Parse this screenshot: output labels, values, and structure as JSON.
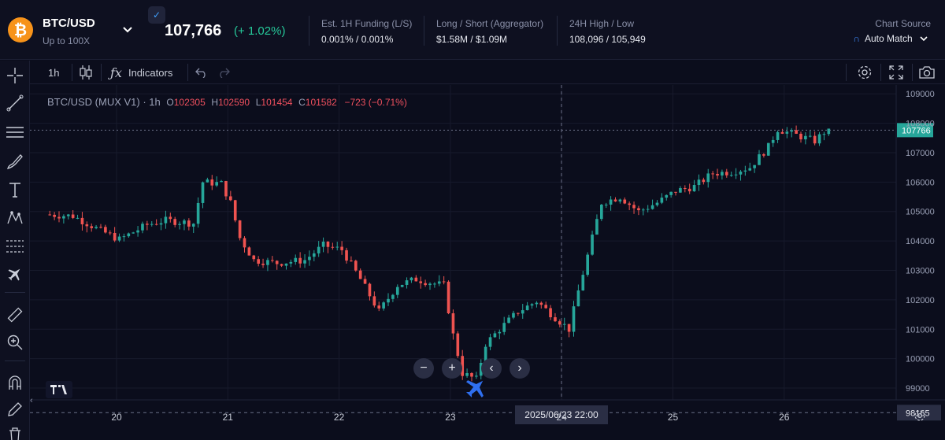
{
  "header": {
    "coin_symbol": "₿",
    "pair": "BTC/USD",
    "leverage": "Up to 100X",
    "dropdown_icon": "chevron-down-icon",
    "price": "107,766",
    "change": "(+ 1.02%)",
    "stats": [
      {
        "label": "Est. 1H Funding (L/S)",
        "value": "0.001% / 0.001%"
      },
      {
        "label": "Long / Short (Aggregator)",
        "value": "$1.58M / $1.09M"
      },
      {
        "label": "24H High / Low",
        "value": "108,096 / 105,949"
      }
    ],
    "chart_source_label": "Chart Source",
    "chart_source_value": "Auto Match"
  },
  "toolbar": {
    "interval": "1h",
    "indicators_label": "Indicators"
  },
  "legend": {
    "symbol": "BTC/USD (MUX V1) · 1h",
    "o_label": "O",
    "o": "102305",
    "h_label": "H",
    "h": "102590",
    "l_label": "L",
    "l": "101454",
    "c_label": "C",
    "c": "101582",
    "change": "−723 (−0.71%)"
  },
  "crosshair": {
    "time_label": "2025/06/23   22:00",
    "price_label": "98165"
  },
  "last_price_label": "107766",
  "colors": {
    "up": "#26a69a",
    "down": "#ef5350",
    "background": "#0b0d1c",
    "accent": "#3f8cff",
    "last_price": "#26a69a"
  },
  "chart_data": {
    "type": "candlestick",
    "title": "BTC/USD (MUX V1) · 1h",
    "xlabel": "",
    "ylabel": "",
    "x_ticks": [
      "20",
      "21",
      "22",
      "23",
      "24",
      "25",
      "26"
    ],
    "y_ticks": [
      "109000",
      "108000",
      "107000",
      "106000",
      "105000",
      "104000",
      "103000",
      "102000",
      "101000",
      "100000",
      "99000"
    ],
    "ylim": [
      98600,
      109300
    ],
    "last_price": 107766,
    "grid": true,
    "keypoints": [
      {
        "t": 0,
        "p": 104900
      },
      {
        "t": 6,
        "p": 104850
      },
      {
        "t": 12,
        "p": 104350
      },
      {
        "t": 16,
        "p": 104050
      },
      {
        "t": 22,
        "p": 104550
      },
      {
        "t": 26,
        "p": 104700
      },
      {
        "t": 32,
        "p": 104600
      },
      {
        "t": 34,
        "p": 106000
      },
      {
        "t": 38,
        "p": 105950
      },
      {
        "t": 40,
        "p": 105300
      },
      {
        "t": 42,
        "p": 104100
      },
      {
        "t": 45,
        "p": 103350
      },
      {
        "t": 50,
        "p": 103250
      },
      {
        "t": 56,
        "p": 103350
      },
      {
        "t": 60,
        "p": 103850
      },
      {
        "t": 64,
        "p": 103700
      },
      {
        "t": 68,
        "p": 102700
      },
      {
        "t": 72,
        "p": 101600
      },
      {
        "t": 76,
        "p": 102500
      },
      {
        "t": 80,
        "p": 102700
      },
      {
        "t": 84,
        "p": 102550
      },
      {
        "t": 86,
        "p": 102500
      },
      {
        "t": 88,
        "p": 100800
      },
      {
        "t": 90,
        "p": 99500
      },
      {
        "t": 93,
        "p": 99300
      },
      {
        "t": 95,
        "p": 100500
      },
      {
        "t": 98,
        "p": 101000
      },
      {
        "t": 102,
        "p": 101600
      },
      {
        "t": 106,
        "p": 101950
      },
      {
        "t": 110,
        "p": 101400
      },
      {
        "t": 113,
        "p": 101000
      },
      {
        "t": 115,
        "p": 102300
      },
      {
        "t": 118,
        "p": 104100
      },
      {
        "t": 120,
        "p": 105300
      },
      {
        "t": 124,
        "p": 105500
      },
      {
        "t": 128,
        "p": 105000
      },
      {
        "t": 132,
        "p": 105300
      },
      {
        "t": 136,
        "p": 105700
      },
      {
        "t": 140,
        "p": 105850
      },
      {
        "t": 144,
        "p": 106300
      },
      {
        "t": 148,
        "p": 106350
      },
      {
        "t": 152,
        "p": 106500
      },
      {
        "t": 156,
        "p": 107200
      },
      {
        "t": 158,
        "p": 107800
      },
      {
        "t": 162,
        "p": 107600
      },
      {
        "t": 166,
        "p": 107400
      },
      {
        "t": 168,
        "p": 107700
      }
    ],
    "start_day_offset": 0.6,
    "bars_per_day": 24
  }
}
